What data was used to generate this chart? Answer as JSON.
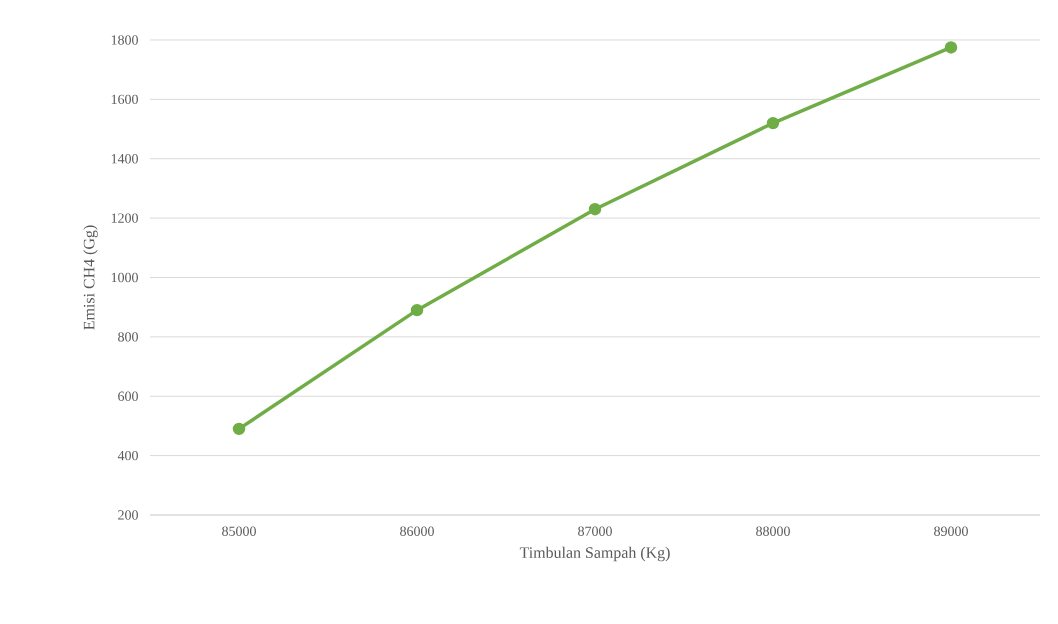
{
  "chart_data": {
    "type": "line",
    "xlabel": "Timbulan Sampah (Kg)",
    "ylabel": "Emisi CH4 (Gg)",
    "categories": [
      "85000",
      "86000",
      "87000",
      "88000",
      "89000"
    ],
    "series": [
      {
        "color": "#70ad47",
        "values": [
          490,
          890,
          1230,
          1520,
          1775
        ]
      }
    ],
    "ylim": [
      200,
      1800
    ],
    "yticks": [
      200,
      400,
      600,
      800,
      1000,
      1200,
      1400,
      1600,
      1800
    ],
    "grid": "y",
    "marker": "circle",
    "line_style": "solid"
  }
}
